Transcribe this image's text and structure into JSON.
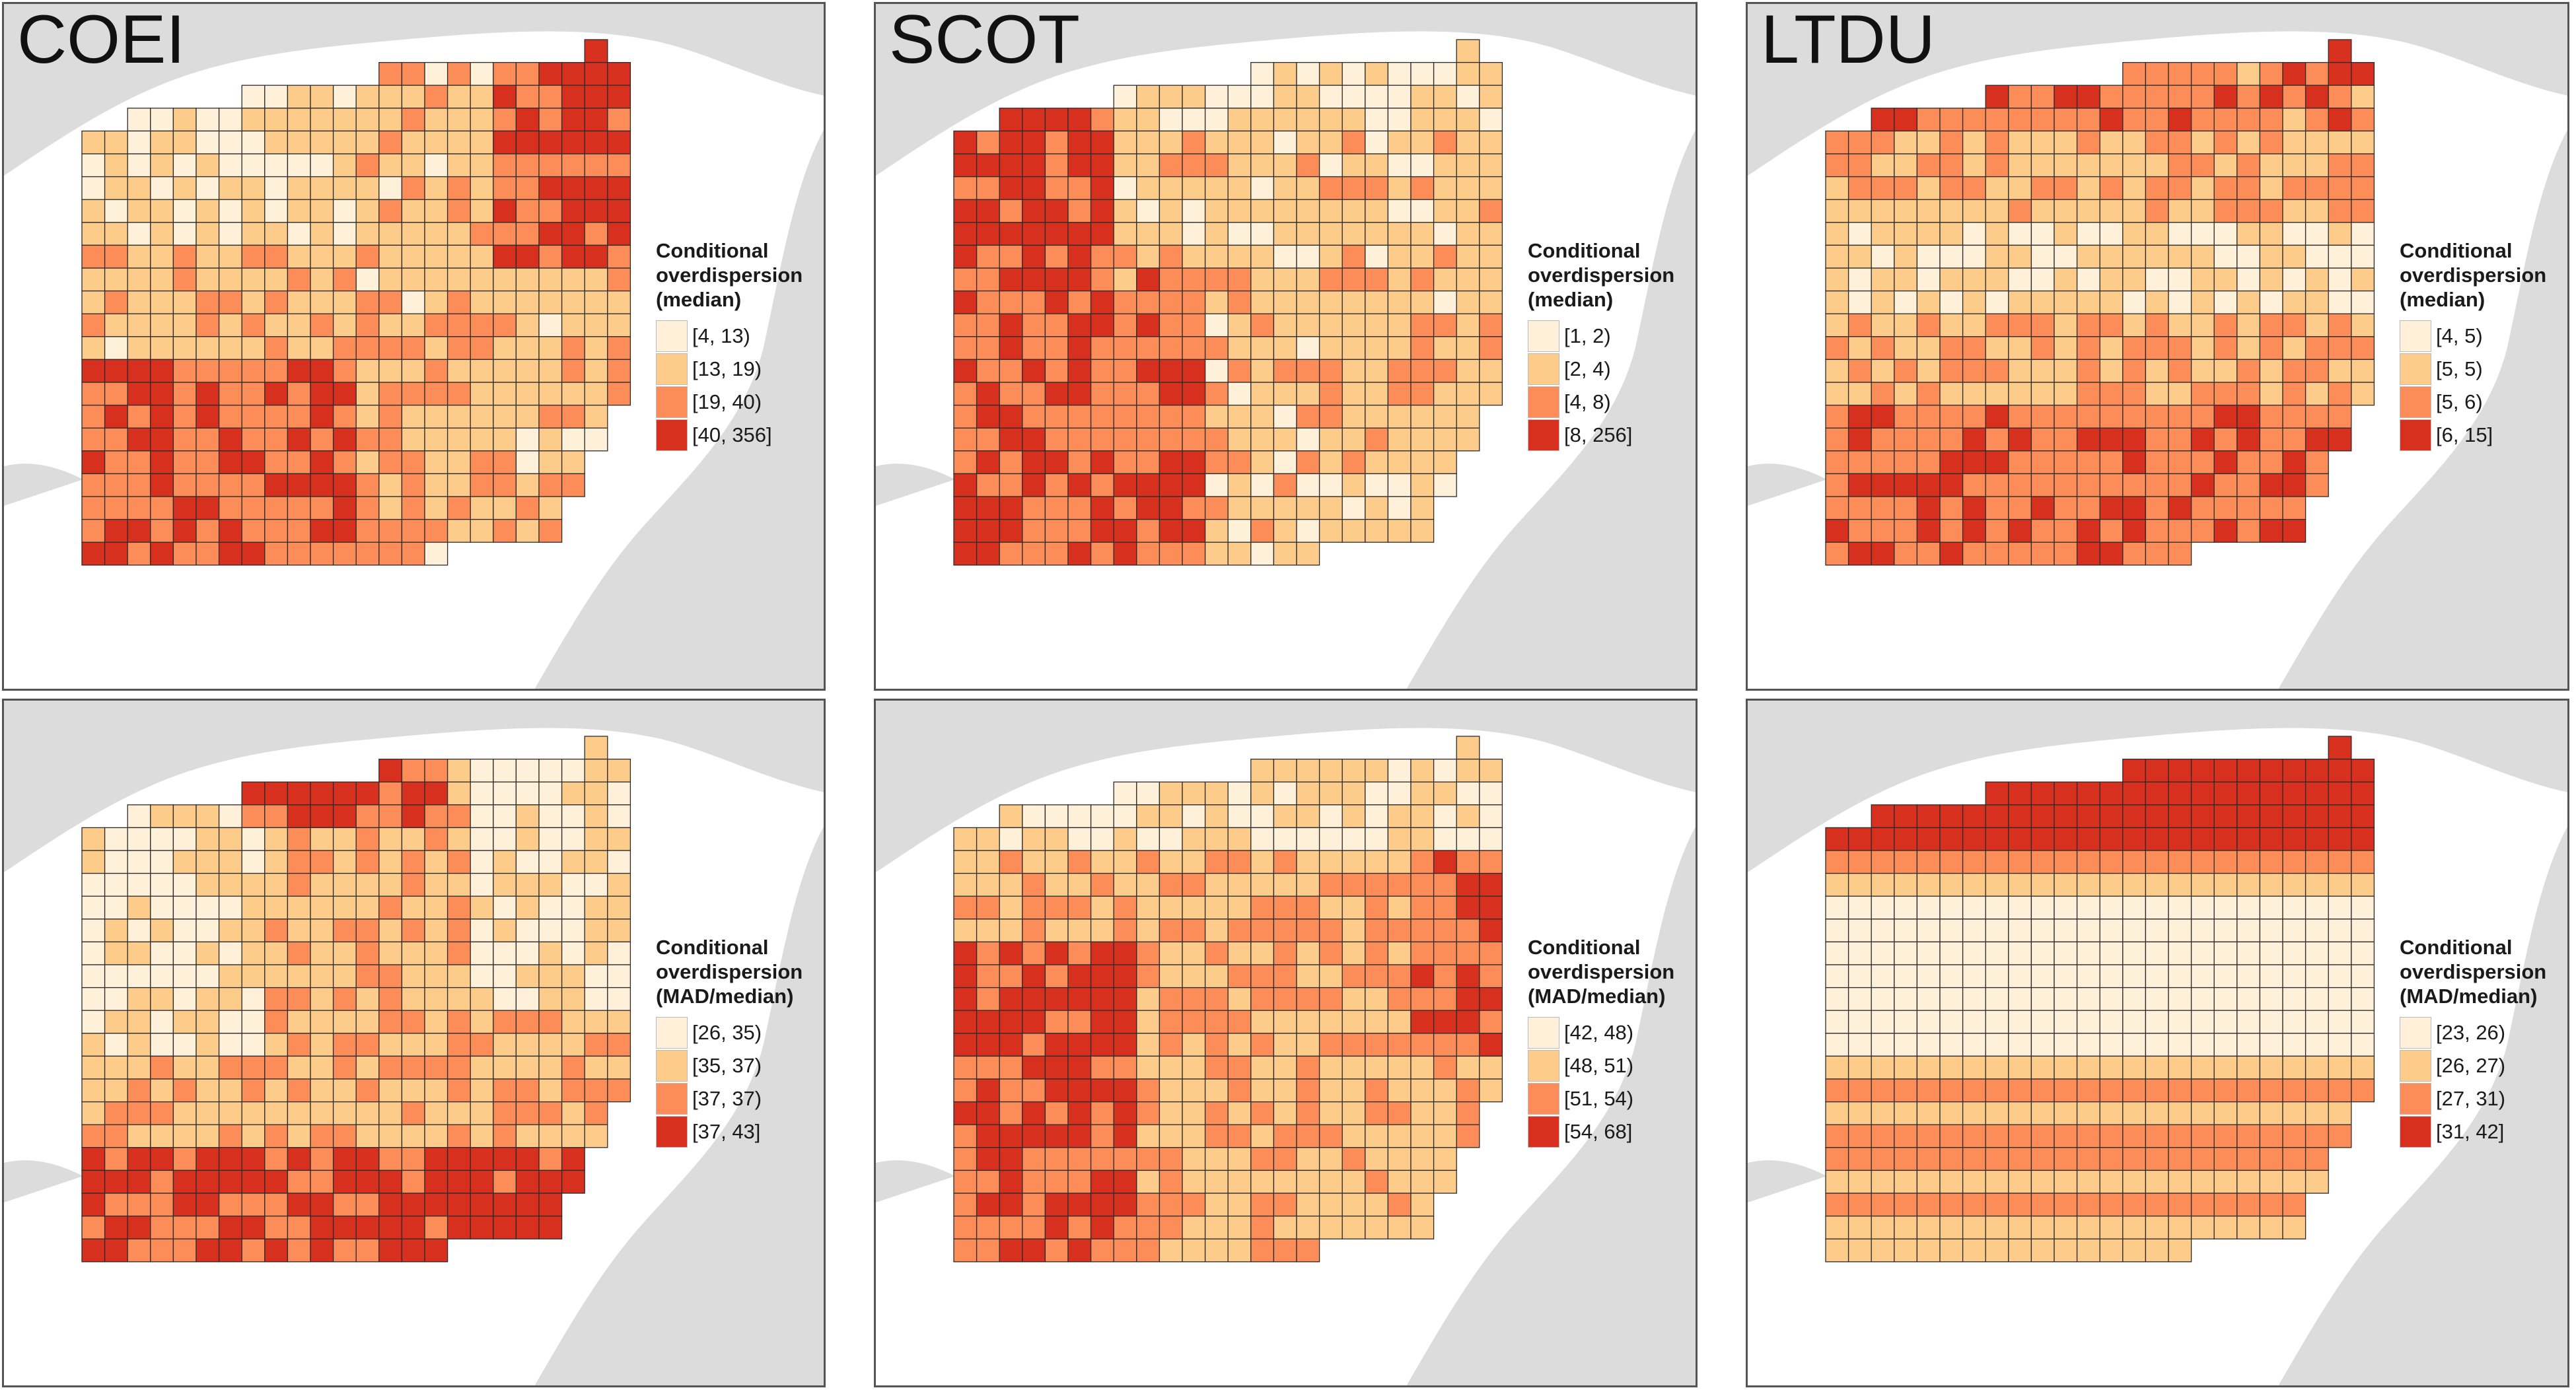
{
  "colors": {
    "class1": "#fef0d9",
    "class2": "#fdcc8a",
    "class3": "#fc8d59",
    "class4": "#d7301f",
    "land": "#dcdcdc",
    "water": "#ffffff",
    "cell_border": "#2b2b2b",
    "highlight_border": "#333333"
  },
  "panels": [
    {
      "species": "COEI",
      "legend_title": [
        "Conditional",
        "overdispersion",
        "(median)"
      ],
      "classes": [
        "[4, 13)",
        "[13, 19)",
        "[19, 40)",
        "[40, 356]"
      ]
    },
    {
      "species": "SCOT",
      "legend_title": [
        "Conditional",
        "overdispersion",
        "(median)"
      ],
      "classes": [
        "[1, 2)",
        "[2, 4)",
        "[4, 8)",
        "[8, 256]"
      ]
    },
    {
      "species": "LTDU",
      "legend_title": [
        "Conditional",
        "overdispersion",
        "(median)"
      ],
      "classes": [
        "[4, 5)",
        "[5, 5)",
        "[5, 6)",
        "[6, 15]"
      ]
    },
    {
      "species": "",
      "legend_title": [
        "Conditional",
        "overdispersion",
        "(MAD/median)"
      ],
      "classes": [
        "[26, 35)",
        "[35, 37)",
        "[37, 37)",
        "[37, 43]"
      ]
    },
    {
      "species": "",
      "legend_title": [
        "Conditional",
        "overdispersion",
        "(MAD/median)"
      ],
      "classes": [
        "[42, 48)",
        "[48, 51)",
        "[51, 54)",
        "[54, 68]"
      ]
    },
    {
      "species": "",
      "legend_title": [
        "Conditional",
        "overdispersion",
        "(MAD/median)"
      ],
      "classes": [
        "[23, 26)",
        "[26, 27)",
        "[27, 31)",
        "[31, 42]"
      ]
    }
  ]
}
